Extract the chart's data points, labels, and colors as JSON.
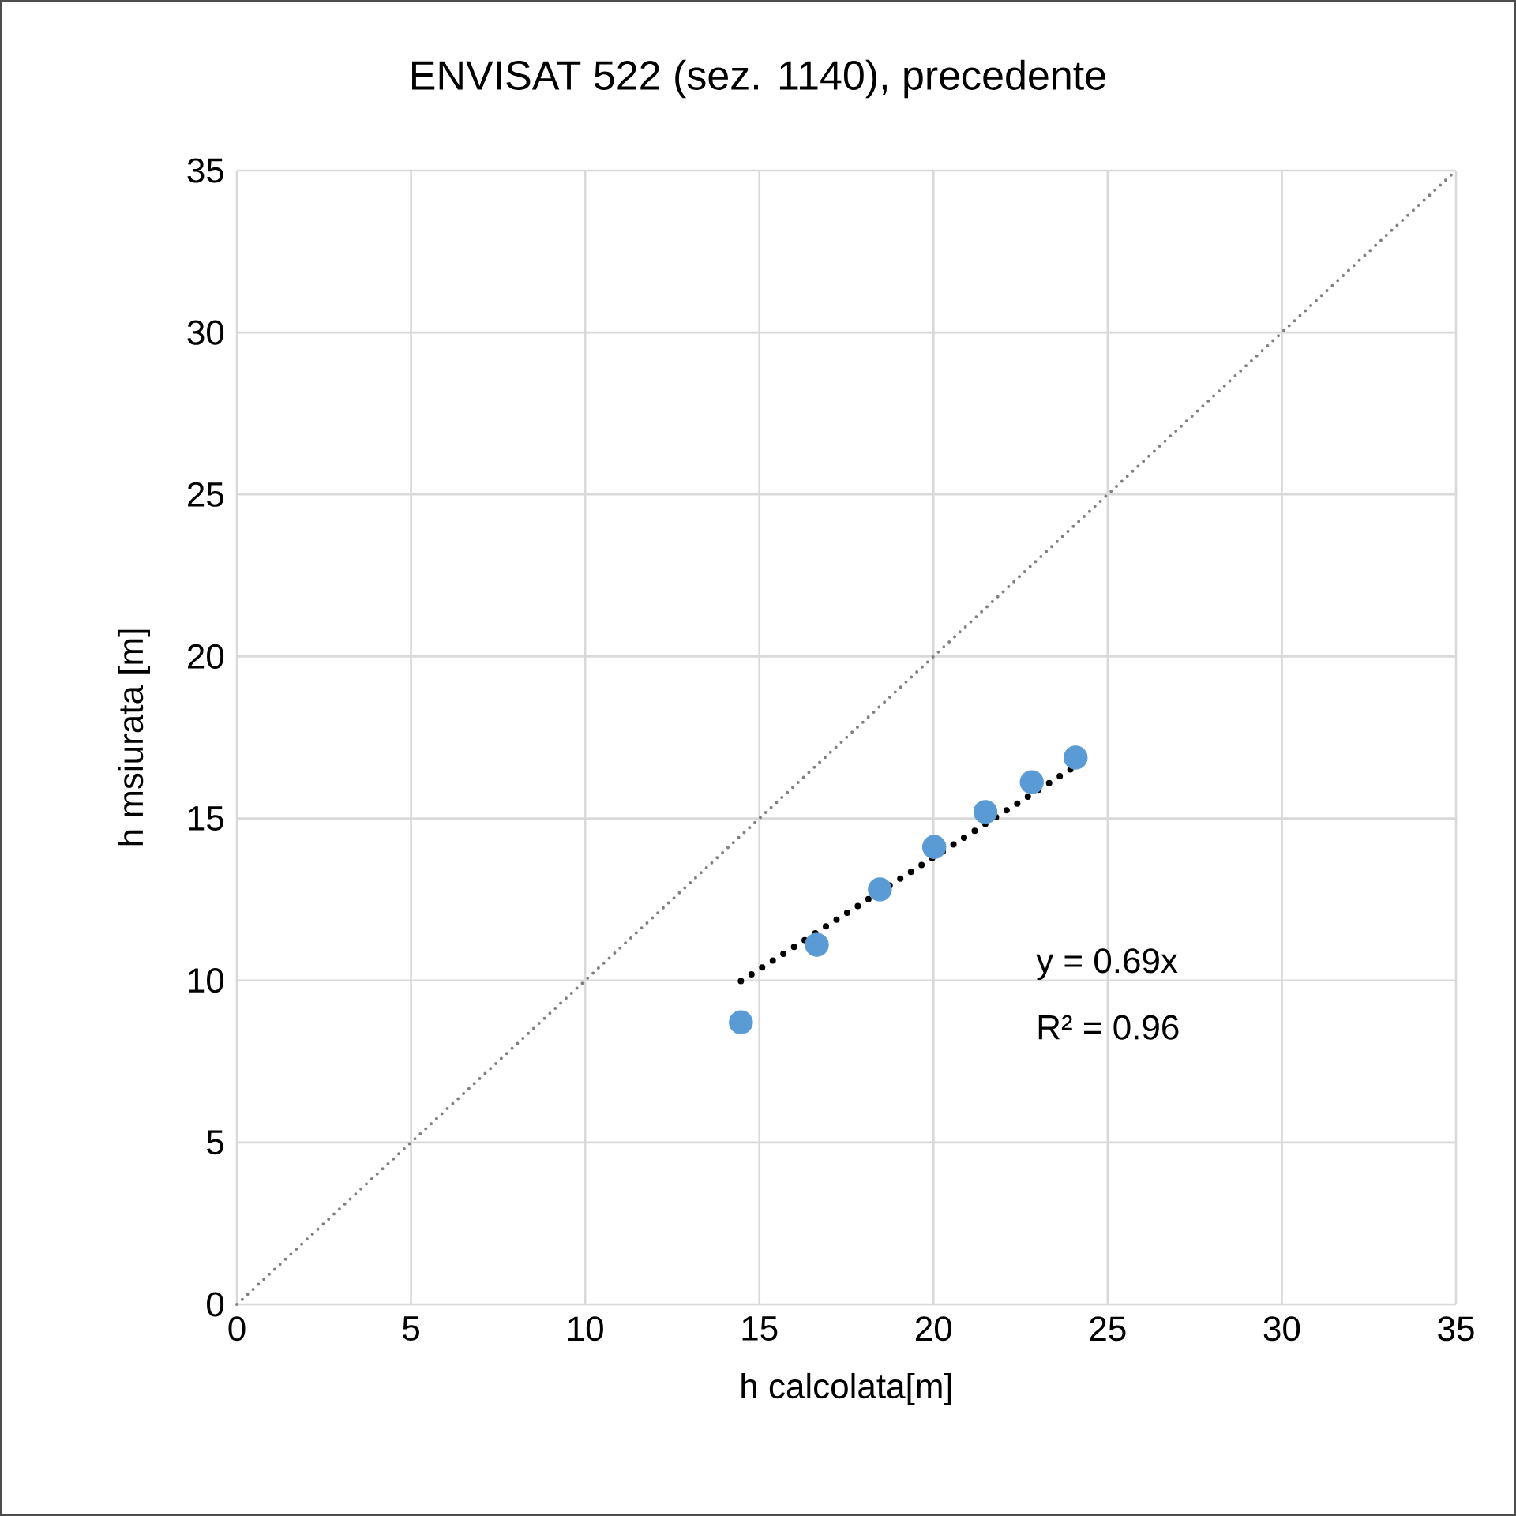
{
  "chart_data": {
    "type": "scatter",
    "title": "ENVISAT 522 (sez. 1140), precedente",
    "xlabel": "h calcolata[m]",
    "ylabel": "h msiurata [m]",
    "series": [
      {
        "color": "#5b9bd5",
        "marker": "circle",
        "x": [
          14.47,
          16.65,
          18.46,
          20.02,
          21.49,
          22.82,
          24.08
        ],
        "values": [
          8.71,
          11.1,
          12.81,
          14.12,
          15.2,
          16.12,
          16.88
        ]
      },
      {
        "type": "line",
        "color": "#000000",
        "line_style": "dotted",
        "x": [
          14.47,
          24.08
        ],
        "values": [
          9.98,
          16.62
        ]
      },
      {
        "type": "line",
        "color": "#808080",
        "line_style": "dotted",
        "x": [
          0,
          35
        ],
        "values": [
          0,
          35
        ]
      }
    ],
    "annotations": [
      "y = 0.69x",
      "R² = 0.96"
    ],
    "xlim": [
      0,
      35
    ],
    "ylim": [
      0,
      35
    ],
    "xticks": [
      0,
      5,
      10,
      15,
      20,
      25,
      30,
      35
    ],
    "yticks": [
      0,
      5,
      10,
      15,
      20,
      25,
      30,
      35
    ],
    "grid": true
  }
}
